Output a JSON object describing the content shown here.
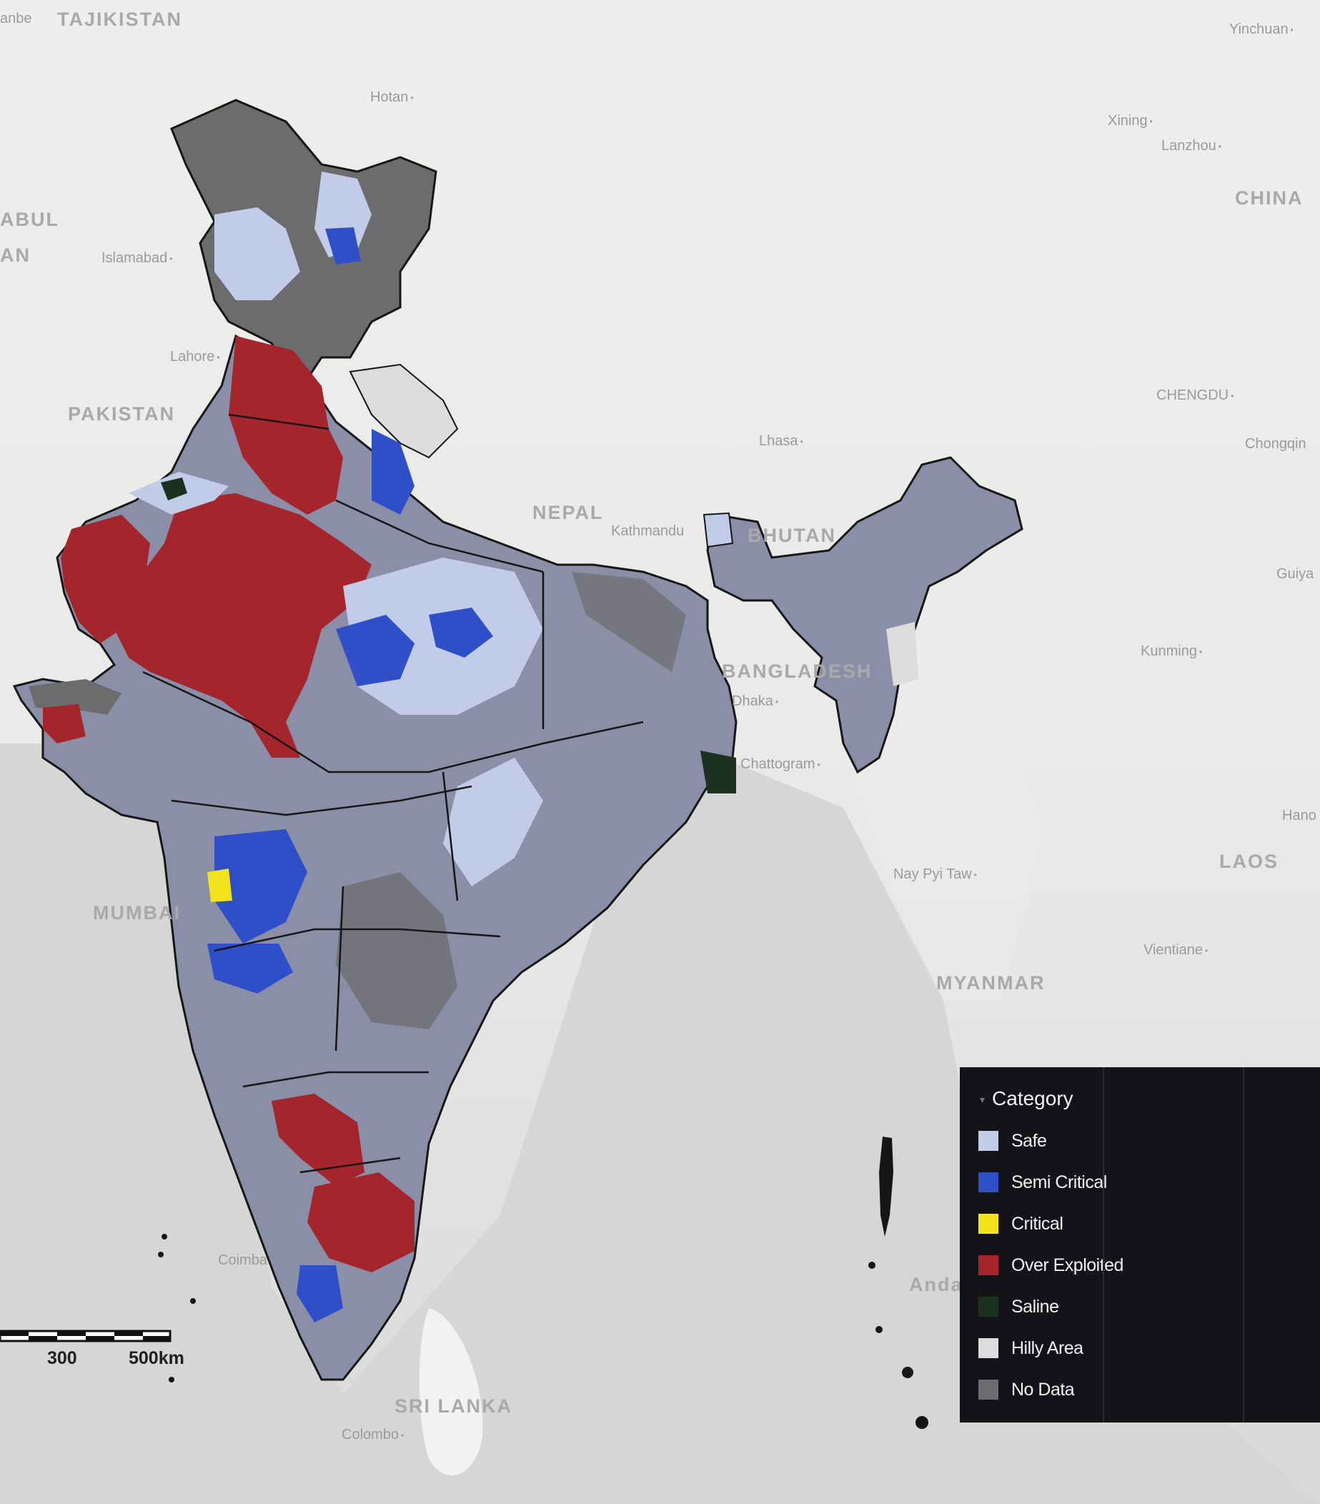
{
  "map": {
    "colors": {
      "safe": "#c2cbe8",
      "semi_critical": "#2f4fc9",
      "critical": "#f0e31c",
      "over_exploited": "#a5252d",
      "saline": "#1c3220",
      "hilly_area": "#dcdcdc",
      "no_data": "#6c6c6e",
      "mixed_districts": "#8a8ea6",
      "boundary": "#161616"
    },
    "places": {
      "tajikistan": "TAJIKISTAN",
      "anbe": "anbe",
      "yinchuan": "Yinchuan",
      "hotan": "Hotan",
      "xining": "Xining",
      "lanzhou": "Lanzhou",
      "china": "CHINA",
      "kabul": "ABUL",
      "an": "AN",
      "islamabad": "Islamabad",
      "lahore": "Lahore",
      "pakistan": "PAKISTAN",
      "chengdu": "CHENGDU",
      "chongqing": "Chongqin",
      "lhasa": "Lhasa",
      "nepal": "NEPAL",
      "kathmandu": "Kathmandu",
      "bhutan": "BHUTAN",
      "guiyang": "Guiya",
      "kunming": "Kunming",
      "bangladesh": "BANGLADESH",
      "dhaka": "Dhaka",
      "chattogram": "Chattogram",
      "hanoi": "Hano",
      "laos": "LAOS",
      "nay_pyi_taw": "Nay Pyi Taw",
      "mumbai": "MUMBAI",
      "vientiane": "Vientiane",
      "myanmar": "MYANMAR",
      "coimbatore": "Coimba",
      "andaman": "Anda",
      "sri_lanka": "SRI LANKA",
      "colombo": "Colombo"
    },
    "scale": {
      "label_1": "300",
      "label_2": "500km"
    }
  },
  "legend": {
    "title": "Category",
    "items": [
      {
        "label": "Safe",
        "color": "#c2cbe8"
      },
      {
        "label": "Semi Critical",
        "color": "#2f4fc9"
      },
      {
        "label": "Critical",
        "color": "#f0e31c"
      },
      {
        "label": "Over Exploited",
        "color": "#a5252d"
      },
      {
        "label": "Saline",
        "color": "#1c3220"
      },
      {
        "label": "Hilly Area",
        "color": "#dcdcdc"
      },
      {
        "label": "No Data",
        "color": "#6c6c6e"
      }
    ]
  }
}
